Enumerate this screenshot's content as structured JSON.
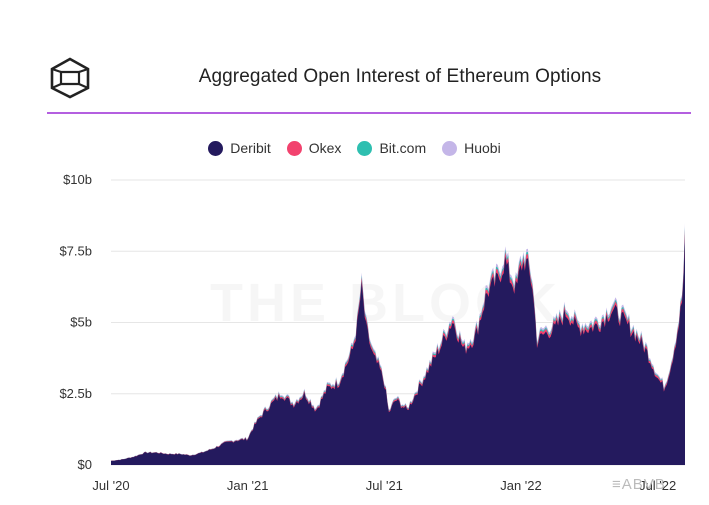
{
  "chart_data": {
    "type": "area",
    "title": "Aggregated Open Interest of Ethereum Options",
    "series": [
      {
        "name": "Deribit",
        "color": "#241a5e"
      },
      {
        "name": "Okex",
        "color": "#f2426e"
      },
      {
        "name": "Bit.com",
        "color": "#2ebfb0"
      },
      {
        "name": "Huobi",
        "color": "#c4b6e8"
      }
    ],
    "y_ticks": [
      "$0",
      "$2.5b",
      "$5b",
      "$7.5b",
      "$10b"
    ],
    "y_tick_values": [
      0,
      2.5,
      5,
      7.5,
      10
    ],
    "ylim": [
      0,
      10
    ],
    "x_ticks": [
      "Jul '20",
      "Jan '21",
      "Jul '21",
      "Jan '22",
      "Jul '22"
    ],
    "x_tick_positions": [
      0,
      6,
      12,
      18,
      24
    ],
    "xlim": [
      0,
      25.2
    ],
    "x_unit": "months since Jul 2020",
    "y_unit": "billions USD",
    "points": [
      [
        0,
        0.15
      ],
      [
        0.5,
        0.2
      ],
      [
        1,
        0.3
      ],
      [
        1.5,
        0.45
      ],
      [
        2,
        0.45
      ],
      [
        2.5,
        0.4
      ],
      [
        3,
        0.4
      ],
      [
        3.5,
        0.35
      ],
      [
        4,
        0.45
      ],
      [
        4.5,
        0.6
      ],
      [
        5,
        0.8
      ],
      [
        5.5,
        0.9
      ],
      [
        6,
        0.95
      ],
      [
        6.2,
        1.3
      ],
      [
        6.5,
        1.7
      ],
      [
        7,
        2.2
      ],
      [
        7.5,
        2.6
      ],
      [
        8,
        2.2
      ],
      [
        8.5,
        2.6
      ],
      [
        9,
        2.0
      ],
      [
        9.5,
        2.8
      ],
      [
        10,
        3.0
      ],
      [
        10.3,
        3.6
      ],
      [
        10.6,
        4.2
      ],
      [
        10.8,
        5.0
      ],
      [
        11,
        6.5
      ],
      [
        11.2,
        5.0
      ],
      [
        11.5,
        4.0
      ],
      [
        11.8,
        3.5
      ],
      [
        12,
        3.0
      ],
      [
        12.2,
        1.9
      ],
      [
        12.5,
        2.4
      ],
      [
        13,
        2.0
      ],
      [
        13.5,
        2.8
      ],
      [
        14,
        3.6
      ],
      [
        14.5,
        4.4
      ],
      [
        15,
        5.3
      ],
      [
        15.5,
        4.2
      ],
      [
        16,
        4.7
      ],
      [
        16.5,
        6.3
      ],
      [
        17,
        6.8
      ],
      [
        17.3,
        7.5
      ],
      [
        17.5,
        6.9
      ],
      [
        17.8,
        6.4
      ],
      [
        18,
        7.3
      ],
      [
        18.2,
        7.5
      ],
      [
        18.5,
        6.6
      ],
      [
        18.7,
        4.5
      ],
      [
        19,
        4.8
      ],
      [
        19.5,
        5.0
      ],
      [
        20,
        5.6
      ],
      [
        20.5,
        5.0
      ],
      [
        21,
        5.0
      ],
      [
        21.5,
        5.2
      ],
      [
        22,
        5.7
      ],
      [
        22.5,
        5.3
      ],
      [
        23,
        4.8
      ],
      [
        23.5,
        4.2
      ],
      [
        24,
        3.2
      ],
      [
        24.3,
        2.8
      ],
      [
        24.6,
        3.7
      ],
      [
        24.9,
        5.0
      ],
      [
        25.1,
        6.2
      ],
      [
        25.2,
        8.1
      ]
    ]
  },
  "watermark": "THE BLOCK",
  "corner_mark": "≡ABVB"
}
